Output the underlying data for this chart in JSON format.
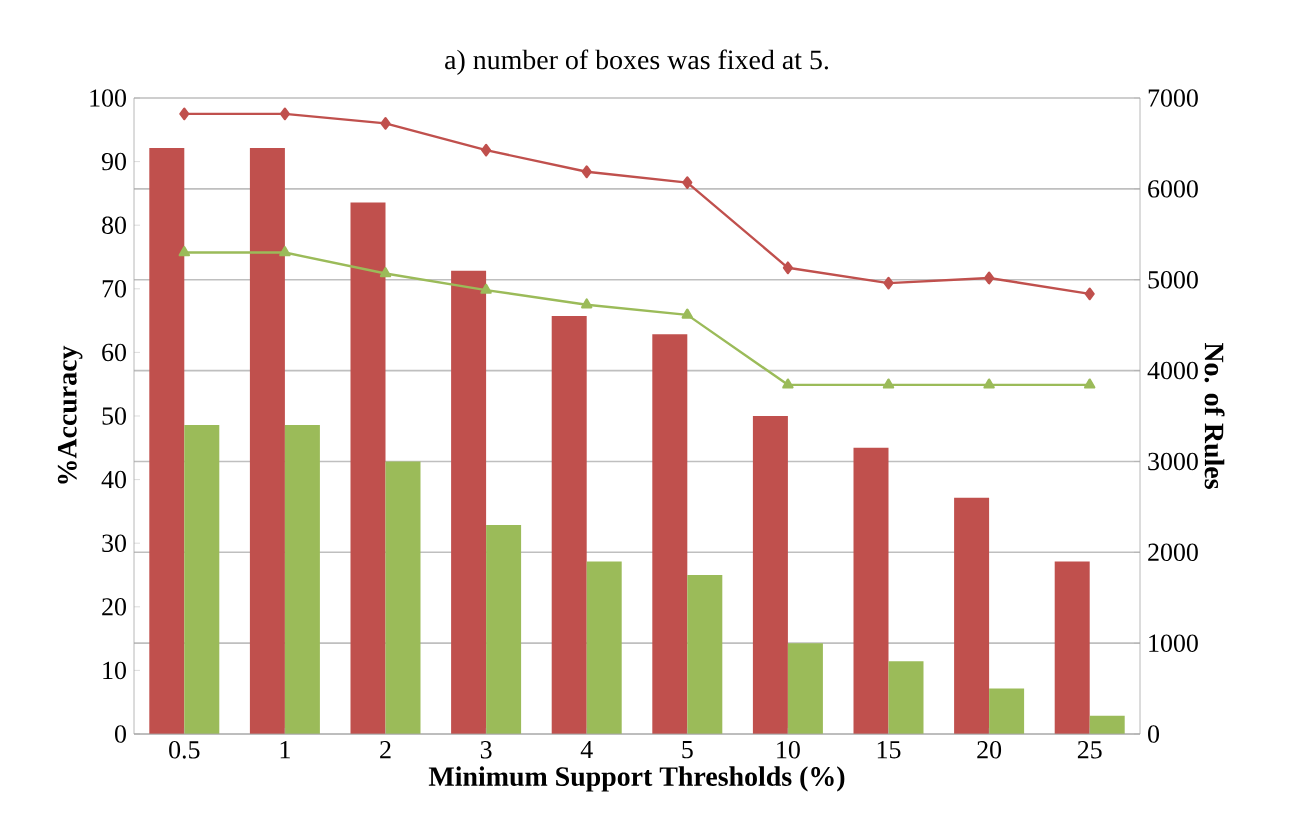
{
  "chart_data": {
    "type": "bar",
    "title": "a) number of boxes was fixed at 5.",
    "xlabel": "Minimum Support Thresholds (%)",
    "ylabel": "%Accuracy",
    "y2label": "No. of Rules",
    "categories": [
      "0.5",
      "1",
      "2",
      "3",
      "4",
      "5",
      "10",
      "15",
      "20",
      "25"
    ],
    "ylim": [
      0,
      100
    ],
    "yticks": [
      0,
      10,
      20,
      30,
      40,
      50,
      60,
      70,
      80,
      90,
      100
    ],
    "y2lim": [
      0,
      7000
    ],
    "y2ticks": [
      0,
      1000,
      2000,
      3000,
      4000,
      5000,
      6000,
      7000
    ],
    "grid": "y2",
    "series": [
      {
        "axis": "y2",
        "color": "#c0504d",
        "values": [
          6450,
          6450,
          5850,
          5100,
          4600,
          4400,
          3500,
          3150,
          2600,
          1900
        ]
      },
      {
        "axis": "y2",
        "color": "#9bbb59",
        "values": [
          3400,
          3400,
          3000,
          2300,
          1900,
          1750,
          1000,
          800,
          500,
          200
        ]
      },
      {
        "type": "line",
        "axis": "y",
        "color": "#c0504d",
        "marker": "diamond",
        "values": [
          97.5,
          97.5,
          96,
          91.8,
          88.4,
          86.7,
          73.3,
          70.9,
          71.7,
          69.2
        ]
      },
      {
        "type": "line",
        "axis": "y",
        "color": "#9bbb59",
        "marker": "triangle",
        "values": [
          75.7,
          75.7,
          72.4,
          69.8,
          67.5,
          65.9,
          54.9,
          54.9,
          54.9,
          54.9
        ]
      }
    ]
  }
}
